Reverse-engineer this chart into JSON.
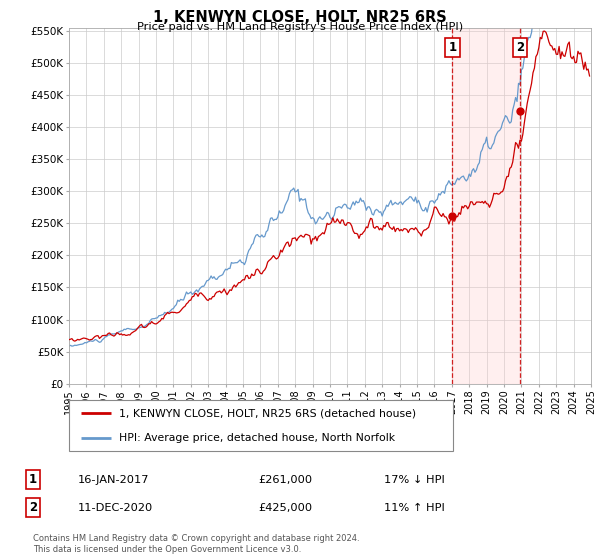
{
  "title": "1, KENWYN CLOSE, HOLT, NR25 6RS",
  "subtitle": "Price paid vs. HM Land Registry's House Price Index (HPI)",
  "legend_entries": [
    "1, KENWYN CLOSE, HOLT, NR25 6RS (detached house)",
    "HPI: Average price, detached house, North Norfolk"
  ],
  "annotation1": {
    "label": "1",
    "date": "16-JAN-2017",
    "price": "£261,000",
    "hpi_diff": "17% ↓ HPI"
  },
  "annotation2": {
    "label": "2",
    "date": "11-DEC-2020",
    "price": "£425,000",
    "hpi_diff": "11% ↑ HPI"
  },
  "footer": [
    "Contains HM Land Registry data © Crown copyright and database right 2024.",
    "This data is licensed under the Open Government Licence v3.0."
  ],
  "red_line_color": "#cc0000",
  "blue_line_color": "#6699cc",
  "grid_color": "#cccccc",
  "background_color": "#ffffff",
  "vline_color": "#cc0000",
  "point1_x": 2017.04,
  "point1_y": 261000,
  "point2_x": 2020.94,
  "point2_y": 425000,
  "xmin": 1995,
  "xmax": 2025,
  "ymin": 0,
  "ymax": 550000,
  "yticks": [
    0,
    50000,
    100000,
    150000,
    200000,
    250000,
    300000,
    350000,
    400000,
    450000,
    500000,
    550000
  ],
  "ytick_labels": [
    "£0",
    "£50K",
    "£100K",
    "£150K",
    "£200K",
    "£250K",
    "£300K",
    "£350K",
    "£400K",
    "£450K",
    "£500K",
    "£550K"
  ],
  "xticks": [
    1995,
    1996,
    1997,
    1998,
    1999,
    2000,
    2001,
    2002,
    2003,
    2004,
    2005,
    2006,
    2007,
    2008,
    2009,
    2010,
    2011,
    2012,
    2013,
    2014,
    2015,
    2016,
    2017,
    2018,
    2019,
    2020,
    2021,
    2022,
    2023,
    2024,
    2025
  ]
}
